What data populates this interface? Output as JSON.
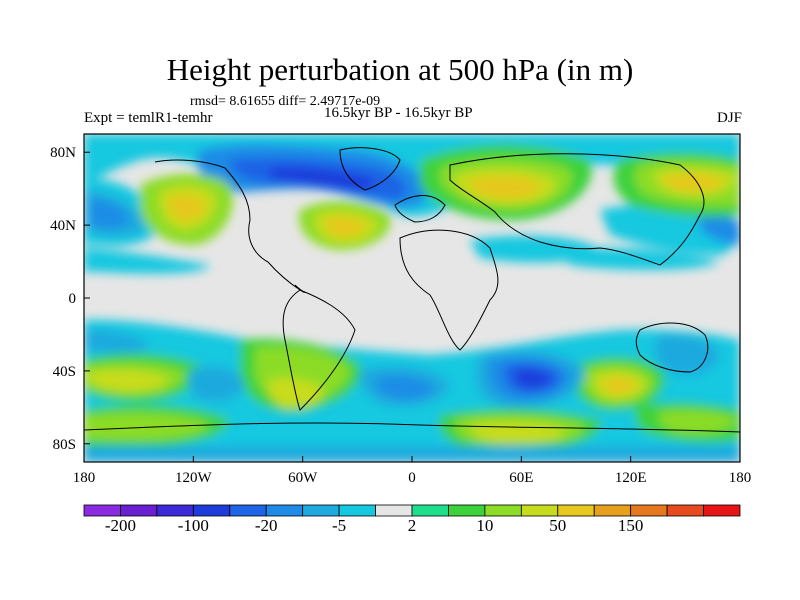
{
  "title": "Height perturbation at 500 hPa (in m)",
  "stats_line": "rmsd= 8.61655 diff= 2.49717e-09",
  "left_label": "Expt = temlR1-temhr",
  "center_label": "16.5kyr BP - 16.5kyr BP",
  "right_label": "DJF",
  "map": {
    "lat_ticks": [
      {
        "label": "80N",
        "lat": 80
      },
      {
        "label": "40N",
        "lat": 40
      },
      {
        "label": "0",
        "lat": 0
      },
      {
        "label": "40S",
        "lat": -40
      },
      {
        "label": "80S",
        "lat": -80
      }
    ],
    "lon_ticks": [
      {
        "label": "180",
        "lon": -180
      },
      {
        "label": "120W",
        "lon": -120
      },
      {
        "label": "60W",
        "lon": -60
      },
      {
        "label": "0",
        "lon": 0
      },
      {
        "label": "60E",
        "lon": 60
      },
      {
        "label": "120E",
        "lon": 120
      },
      {
        "label": "180",
        "lon": 180
      }
    ],
    "lat_range": [
      -90,
      90
    ],
    "lon_range": [
      -180,
      180
    ]
  },
  "colorbar": {
    "colors": [
      "#8a2be2",
      "#6a1fd0",
      "#3c2ad8",
      "#1e3cdc",
      "#1e64e6",
      "#1e8ce6",
      "#1eaade",
      "#14c8e0",
      "#e6e6e6",
      "#1ede8c",
      "#3cd23c",
      "#8cdc28",
      "#c8dc1e",
      "#e6c81e",
      "#e6a01e",
      "#e6781e",
      "#e64a1e",
      "#e61414"
    ],
    "tick_labels": [
      {
        "label": "-200",
        "boundary": 1
      },
      {
        "label": "-100",
        "boundary": 3
      },
      {
        "label": "-20",
        "boundary": 5
      },
      {
        "label": "-5",
        "boundary": 7
      },
      {
        "label": "2",
        "boundary": 9
      },
      {
        "label": "10",
        "boundary": 11
      },
      {
        "label": "50",
        "boundary": 13
      },
      {
        "label": "150",
        "boundary": 15
      }
    ]
  }
}
